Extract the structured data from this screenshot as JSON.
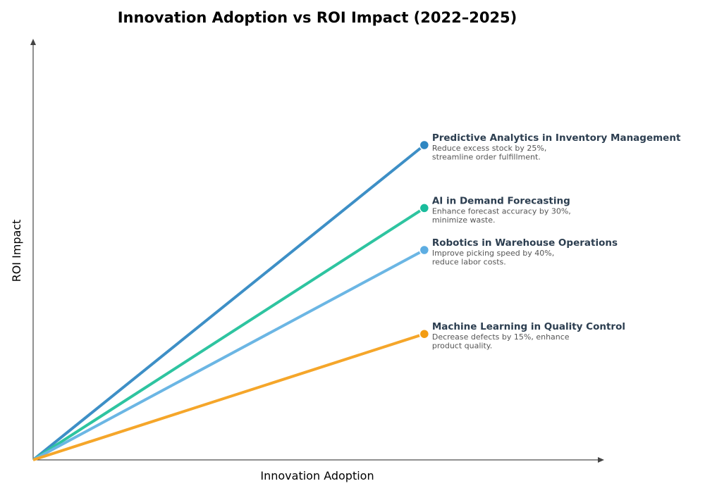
{
  "chart_data": {
    "type": "line",
    "title": "Innovation Adoption vs ROI Impact (2022–2025)",
    "xlabel": "Innovation Adoption",
    "ylabel": "ROI Impact",
    "xlim": [
      0,
      1
    ],
    "ylim": [
      0,
      1
    ],
    "grid": false,
    "series": [
      {
        "name": "Predictive Analytics in Inventory Management",
        "description": [
          "Reduce excess stock by 25%,",
          "streamline order fulfillment."
        ],
        "x": [
          0,
          0.685
        ],
        "y": [
          0,
          0.75
        ],
        "color": "#2e86c1",
        "line_color": "#3d8fc6"
      },
      {
        "name": "AI in Demand Forecasting",
        "description": [
          "Enhance forecast accuracy by 30%,",
          "minimize waste."
        ],
        "x": [
          0,
          0.685
        ],
        "y": [
          0,
          0.6
        ],
        "color": "#1abc9c",
        "line_color": "#2ec4a0"
      },
      {
        "name": "Robotics in Warehouse Operations",
        "description": [
          "Improve picking speed by 40%,",
          "reduce labor costs."
        ],
        "x": [
          0,
          0.685
        ],
        "y": [
          0,
          0.5
        ],
        "color": "#5dade2",
        "line_color": "#6bb6e4"
      },
      {
        "name": "Machine Learning in Quality Control",
        "description": [
          "Decrease defects by 15%, enhance",
          "product quality."
        ],
        "x": [
          0,
          0.685
        ],
        "y": [
          0,
          0.3
        ],
        "color": "#f39c12",
        "line_color": "#f5a62a"
      }
    ]
  }
}
